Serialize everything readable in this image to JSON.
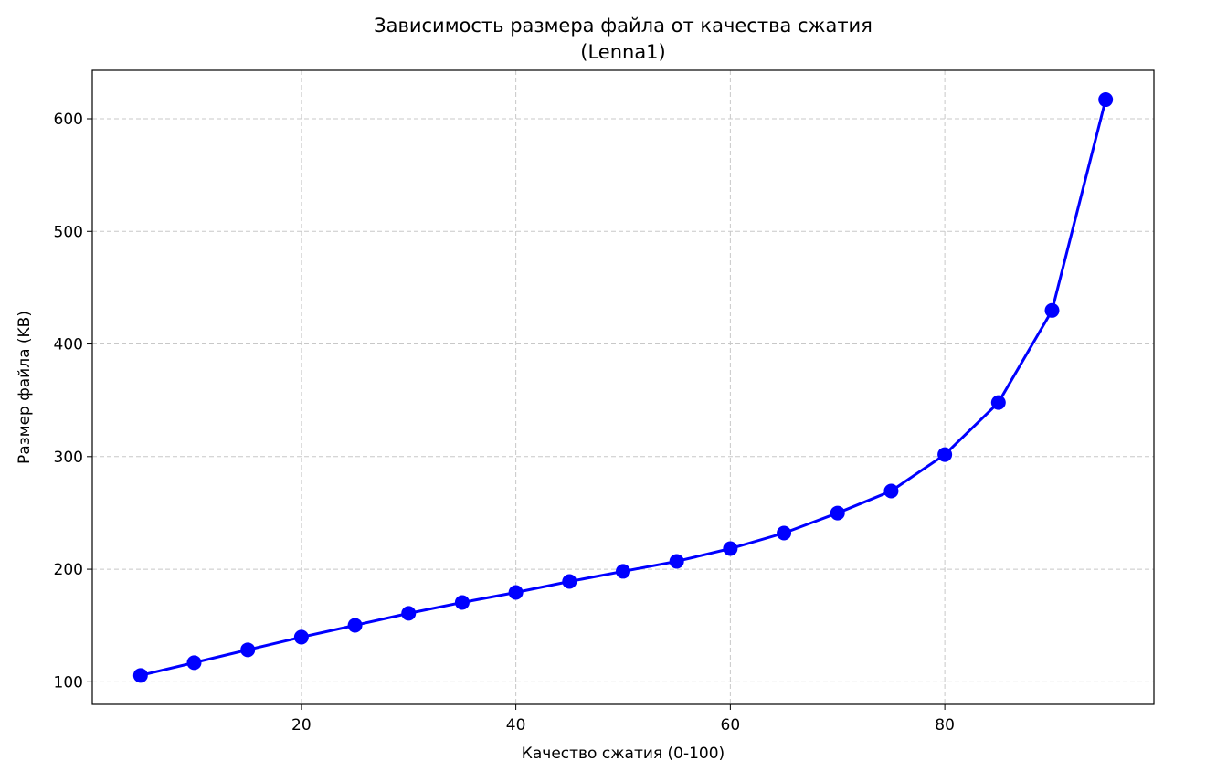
{
  "chart_data": {
    "type": "line",
    "title": "Зависимость размера файла от качества сжатия\n(Lenna1)",
    "x_label": "Качество сжатия (0-100)",
    "y_label": "Размер файла (KB)",
    "x": [
      5,
      10,
      15,
      20,
      25,
      30,
      35,
      40,
      45,
      50,
      55,
      60,
      65,
      70,
      75,
      80,
      85,
      90,
      95
    ],
    "series": [
      {
        "name": "Lenna1",
        "color": "#0000ff",
        "values": [
          105.7,
          117,
          128.4,
          139.7,
          150.2,
          160.8,
          170.5,
          179.4,
          189.1,
          198.1,
          207,
          218.3,
          232.1,
          249.9,
          269.4,
          301.8,
          348,
          429.8,
          617
        ]
      }
    ],
    "xlim": [
      0.5,
      99.5
    ],
    "xticks": [
      20,
      40,
      60,
      80
    ],
    "ylim": [
      80,
      643
    ],
    "yticks": [
      100,
      200,
      300,
      400,
      500,
      600
    ],
    "grid": true
  }
}
